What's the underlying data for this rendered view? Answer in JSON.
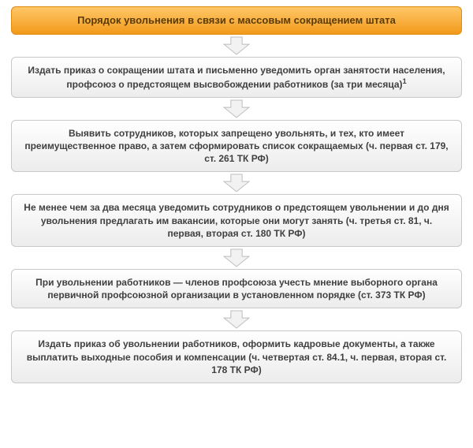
{
  "flowchart": {
    "type": "flowchart",
    "direction": "top-to-bottom",
    "background_color": "#ffffff",
    "box_width_ratio": 0.95,
    "border_radius": 6,
    "font_family": "Arial",
    "title_fontsize": 13,
    "step_fontsize": 12,
    "font_weight": "bold",
    "title": {
      "text": "Порядок увольнения в связи с массовым сокращением штата",
      "gradient_top": "#ffc768",
      "gradient_bottom": "#f29a1a",
      "border_color": "#e18a0e",
      "text_color": "#5a3b08"
    },
    "step_style": {
      "gradient_top": "#ffffff",
      "gradient_bottom": "#ececec",
      "border_color": "#c8c8c8",
      "text_color": "#404040"
    },
    "arrow": {
      "fill_color": "#f2f2f2",
      "stroke_color": "#bdbdbd",
      "width": 34,
      "height": 24
    },
    "steps": [
      {
        "text": "Издать приказ о сокращении штата и письменно уведомить орган занятости населения, профсоюз о предстоящем высвобождении работников (за три месяца)",
        "footnote": "1"
      },
      {
        "text": "Выявить сотрудников, которых запрещено увольнять, и тех, кто имеет преимущественное право, а затем сформировать список сокращаемых (ч. первая ст. 179, ст. 261 ТК РФ)"
      },
      {
        "text": "Не менее чем за два месяца уведомить сотрудников о предстоящем увольнении и до дня увольнения предлагать им вакансии, которые они могут занять (ч. третья ст. 81, ч. первая, вторая ст. 180 ТК РФ)"
      },
      {
        "text": "При увольнении работников — членов профсоюза учесть мнение выборного органа первичной профсоюзной организации в установленном порядке (ст. 373 ТК РФ)"
      },
      {
        "text": "Издать приказ об увольнении работников, оформить кадровые документы, а также выплатить выходные пособия и компенсации (ч. четвертая ст. 84.1, ч. первая, вторая ст. 178 ТК РФ)"
      }
    ]
  }
}
